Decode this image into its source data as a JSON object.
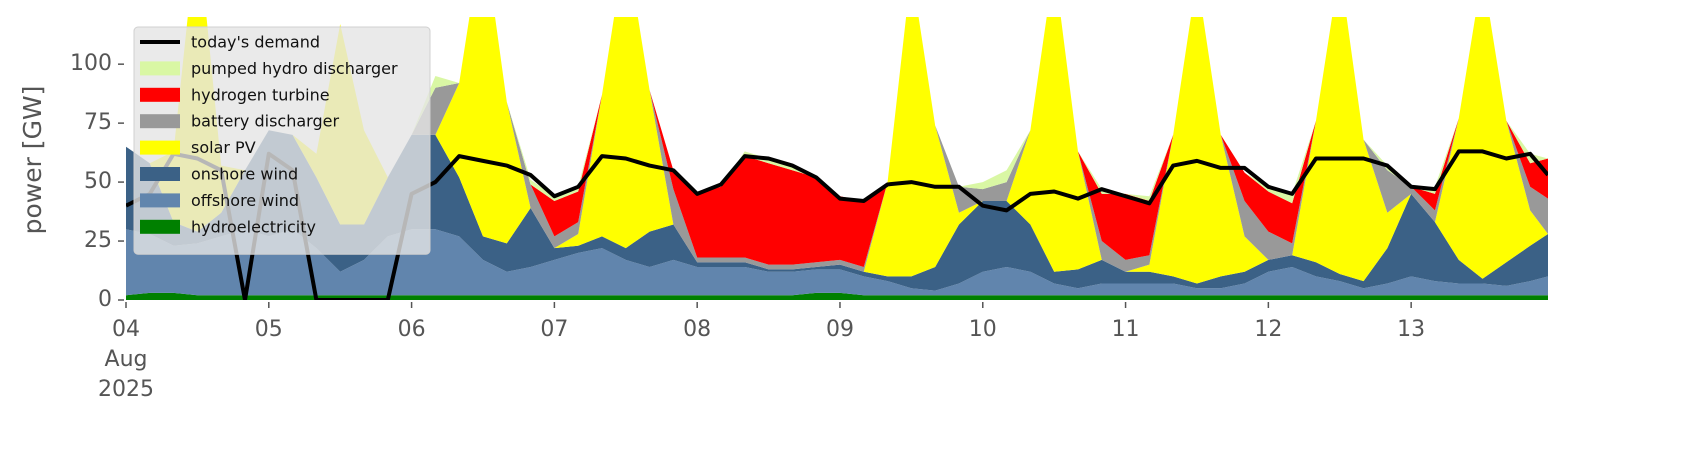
{
  "chart_data": {
    "type": "area",
    "ylabel": "power [GW]",
    "x": [
      0,
      4,
      8,
      12,
      16,
      20,
      24,
      28,
      32,
      36,
      40,
      44,
      48,
      52,
      56,
      60,
      64,
      68,
      72,
      76,
      80,
      84,
      88,
      92,
      96,
      100,
      104,
      108,
      112,
      116,
      120,
      124,
      128,
      132,
      136,
      140,
      144,
      148,
      152,
      156,
      160,
      164,
      168,
      172,
      176,
      180,
      184,
      188,
      192,
      196,
      200,
      204,
      208,
      212,
      216,
      220,
      224,
      228,
      232,
      236,
      239
    ],
    "xlim": [
      0,
      239
    ],
    "xticks": [
      {
        "value": 0,
        "label": "04"
      },
      {
        "value": 24,
        "label": "05"
      },
      {
        "value": 48,
        "label": "06"
      },
      {
        "value": 72,
        "label": "07"
      },
      {
        "value": 96,
        "label": "08"
      },
      {
        "value": 120,
        "label": "09"
      },
      {
        "value": 144,
        "label": "10"
      },
      {
        "value": 168,
        "label": "11"
      },
      {
        "value": 192,
        "label": "12"
      },
      {
        "value": 216,
        "label": "13"
      }
    ],
    "date_label": [
      "Aug",
      "2025"
    ],
    "ylim": [
      0,
      120
    ],
    "yticks": [
      0,
      25,
      50,
      75,
      100
    ],
    "grid": false,
    "legend": "upper left",
    "series": [
      {
        "name": "hydroelectricity",
        "color": "#008000",
        "values": [
          2,
          3,
          3,
          2,
          2,
          2,
          2,
          2,
          2,
          2,
          2,
          2,
          2,
          2,
          2,
          2,
          2,
          2,
          2,
          2,
          2,
          2,
          2,
          2,
          2,
          2,
          2,
          2,
          2,
          3,
          3,
          2,
          2,
          2,
          2,
          2,
          2,
          2,
          2,
          2,
          2,
          2,
          2,
          2,
          2,
          2,
          2,
          2,
          2,
          2,
          2,
          2,
          2,
          2,
          2,
          2,
          2,
          2,
          2,
          2,
          2
        ]
      },
      {
        "name": "offshore wind",
        "color": "#6185ad",
        "values": [
          28,
          25,
          20,
          22,
          25,
          28,
          25,
          28,
          20,
          10,
          15,
          25,
          28,
          28,
          25,
          15,
          10,
          12,
          15,
          18,
          20,
          15,
          12,
          15,
          12,
          12,
          12,
          10,
          10,
          10,
          10,
          8,
          6,
          3,
          2,
          5,
          10,
          12,
          10,
          5,
          3,
          5,
          5,
          5,
          5,
          3,
          3,
          5,
          10,
          12,
          8,
          6,
          3,
          5,
          8,
          6,
          5,
          5,
          4,
          6,
          8
        ]
      },
      {
        "name": "onshore wind",
        "color": "#3b6186",
        "values": [
          35,
          30,
          10,
          5,
          10,
          25,
          45,
          40,
          30,
          20,
          15,
          25,
          40,
          40,
          25,
          10,
          12,
          25,
          5,
          3,
          5,
          5,
          15,
          15,
          2,
          2,
          2,
          1,
          1,
          1,
          2,
          2,
          2,
          5,
          10,
          25,
          30,
          28,
          20,
          5,
          8,
          10,
          5,
          5,
          3,
          2,
          5,
          5,
          5,
          5,
          6,
          3,
          3,
          15,
          35,
          25,
          10,
          2,
          10,
          15,
          18
        ]
      },
      {
        "name": "solar PV",
        "color": "#ffff00",
        "values": [
          0,
          0,
          30,
          130,
          20,
          0,
          0,
          0,
          10,
          85,
          40,
          0,
          0,
          0,
          40,
          130,
          60,
          0,
          0,
          5,
          60,
          130,
          60,
          0,
          0,
          0,
          0,
          0,
          0,
          0,
          0,
          0,
          40,
          130,
          60,
          5,
          0,
          0,
          40,
          130,
          50,
          0,
          0,
          3,
          60,
          130,
          60,
          15,
          0,
          0,
          60,
          130,
          60,
          15,
          0,
          0,
          60,
          130,
          60,
          15,
          0
        ]
      },
      {
        "name": "battery discharger",
        "color": "#999999",
        "values": [
          0,
          0,
          0,
          0,
          0,
          0,
          0,
          0,
          0,
          0,
          0,
          0,
          0,
          20,
          0,
          0,
          0,
          10,
          5,
          5,
          0,
          0,
          0,
          15,
          2,
          2,
          2,
          2,
          2,
          2,
          2,
          2,
          0,
          0,
          0,
          11,
          5,
          8,
          0,
          0,
          0,
          8,
          5,
          4,
          0,
          0,
          0,
          15,
          12,
          5,
          0,
          0,
          0,
          18,
          3,
          5,
          0,
          0,
          0,
          10,
          15
        ]
      },
      {
        "name": "hydrogen turbine",
        "color": "#ff0000",
        "values": [
          0,
          0,
          0,
          0,
          0,
          0,
          0,
          0,
          0,
          0,
          0,
          0,
          0,
          0,
          0,
          0,
          0,
          0,
          15,
          13,
          0,
          0,
          0,
          8,
          27,
          30,
          43,
          43,
          40,
          36,
          27,
          28,
          0,
          0,
          0,
          0,
          0,
          0,
          0,
          0,
          0,
          20,
          28,
          23,
          0,
          0,
          0,
          12,
          17,
          17,
          0,
          0,
          0,
          0,
          0,
          7,
          0,
          0,
          0,
          10,
          17
        ]
      },
      {
        "name": "pumped hydro discharger",
        "color": "#d9f7a4",
        "values": [
          0,
          0,
          0,
          0,
          0,
          0,
          0,
          0,
          0,
          0,
          0,
          0,
          0,
          5,
          0,
          0,
          0,
          2,
          2,
          2,
          0,
          0,
          0,
          0,
          0,
          0,
          2,
          2,
          2,
          0,
          0,
          0,
          0,
          0,
          0,
          0,
          3,
          5,
          0,
          0,
          0,
          2,
          0,
          2,
          0,
          0,
          0,
          0,
          2,
          4,
          0,
          0,
          0,
          2,
          0,
          3,
          0,
          0,
          0,
          4,
          0
        ]
      }
    ],
    "line": {
      "name": "today's demand",
      "color": "#000000",
      "values": [
        40,
        45,
        62,
        60,
        55,
        0,
        62,
        55,
        0,
        0,
        0,
        0,
        45,
        50,
        61,
        59,
        57,
        53,
        44,
        48,
        61,
        60,
        57,
        55,
        45,
        49,
        61,
        60,
        57,
        52,
        43,
        42,
        49,
        50,
        48,
        48,
        40,
        38,
        45,
        46,
        43,
        47,
        44,
        41,
        57,
        59,
        56,
        56,
        48,
        45,
        60,
        60,
        60,
        57,
        48,
        47,
        63,
        63,
        60,
        62,
        53
      ]
    }
  }
}
